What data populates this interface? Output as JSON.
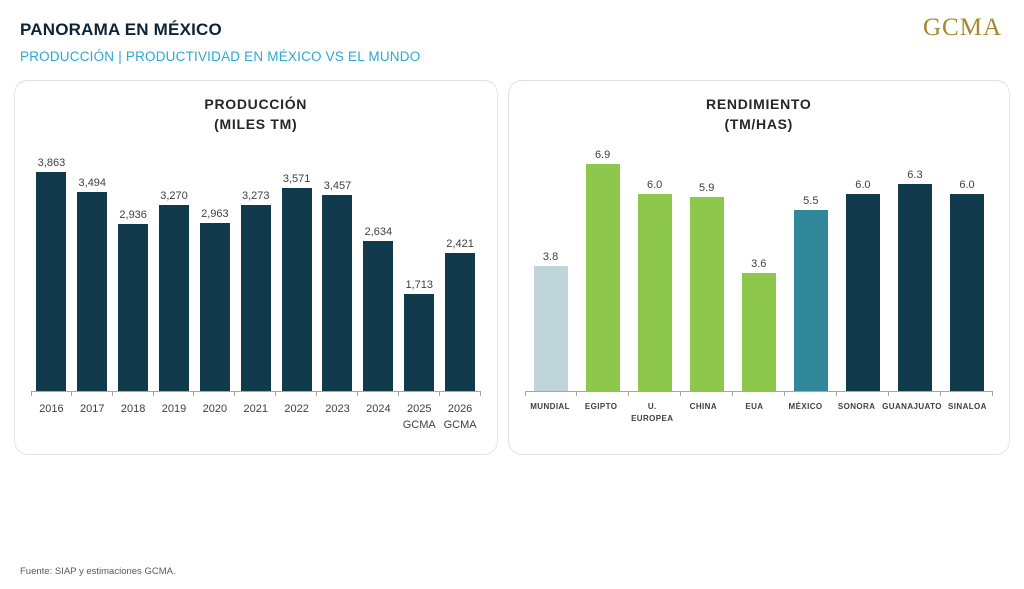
{
  "header": {
    "title": "PANORAMA EN MÉXICO",
    "subtitle": "PRODUCCIÓN | PRODUCTIVIDAD EN MÉXICO VS EL MUNDO",
    "logo": "GCMA"
  },
  "footer": {
    "source": "Fuente: SIAP y estimaciones GCMA."
  },
  "colors": {
    "navy_bar": "#113A4C",
    "green_bar": "#8DC84C",
    "teal_bar": "#31889B",
    "light_blue_bar": "#C0D5D9",
    "accent_cyan": "#2BA9CF",
    "title_navy": "#0D2436",
    "logo_gold": "#A8862D",
    "axis_gray": "#A6A6A6"
  },
  "chart_data": [
    {
      "type": "bar",
      "title": "PRODUCCIÓN",
      "subtitle": "(MILES TM)",
      "xlabel": "",
      "ylabel": "",
      "grid": false,
      "legend": "none",
      "ylim": [
        0,
        4400
      ],
      "categories": [
        "2016",
        "2017",
        "2018",
        "2019",
        "2020",
        "2021",
        "2022",
        "2023",
        "2024",
        "2025",
        "2026"
      ],
      "sublabels": [
        "",
        "",
        "",
        "",
        "",
        "",
        "",
        "",
        "",
        "GCMA",
        "GCMA"
      ],
      "values": [
        3863,
        3494,
        2936,
        3270,
        2963,
        3273,
        3571,
        3457,
        2634,
        1713,
        2421
      ],
      "value_labels": [
        "3,863",
        "3,494",
        "2,936",
        "3,270",
        "2,963",
        "3,273",
        "3,571",
        "3,457",
        "2,634",
        "1,713",
        "2,421"
      ],
      "bar_colors": [
        "#113A4C",
        "#113A4C",
        "#113A4C",
        "#113A4C",
        "#113A4C",
        "#113A4C",
        "#113A4C",
        "#113A4C",
        "#113A4C",
        "#113A4C",
        "#113A4C"
      ]
    },
    {
      "type": "bar",
      "title": "RENDIMIENTO",
      "subtitle": "(TM/HAS)",
      "xlabel": "",
      "ylabel": "",
      "grid": false,
      "legend": "none",
      "ylim": [
        0,
        7.6
      ],
      "categories": [
        "MUNDIAL",
        "EGIPTO",
        "U. EUROPEA",
        "CHINA",
        "EUA",
        "MÉXICO",
        "SONORA",
        "GUANAJUATO",
        "SINALOA"
      ],
      "sublabels": [
        "",
        "",
        "",
        "",
        "",
        "",
        "",
        "",
        ""
      ],
      "values": [
        3.8,
        6.9,
        6.0,
        5.9,
        3.6,
        5.5,
        6.0,
        6.3,
        6.0
      ],
      "value_labels": [
        "3.8",
        "6.9",
        "6.0",
        "5.9",
        "3.6",
        "5.5",
        "6.0",
        "6.3",
        "6.0"
      ],
      "bar_colors": [
        "#C0D5D9",
        "#8DC84C",
        "#8DC84C",
        "#8DC84C",
        "#8DC84C",
        "#31889B",
        "#113A4C",
        "#113A4C",
        "#113A4C"
      ]
    }
  ]
}
